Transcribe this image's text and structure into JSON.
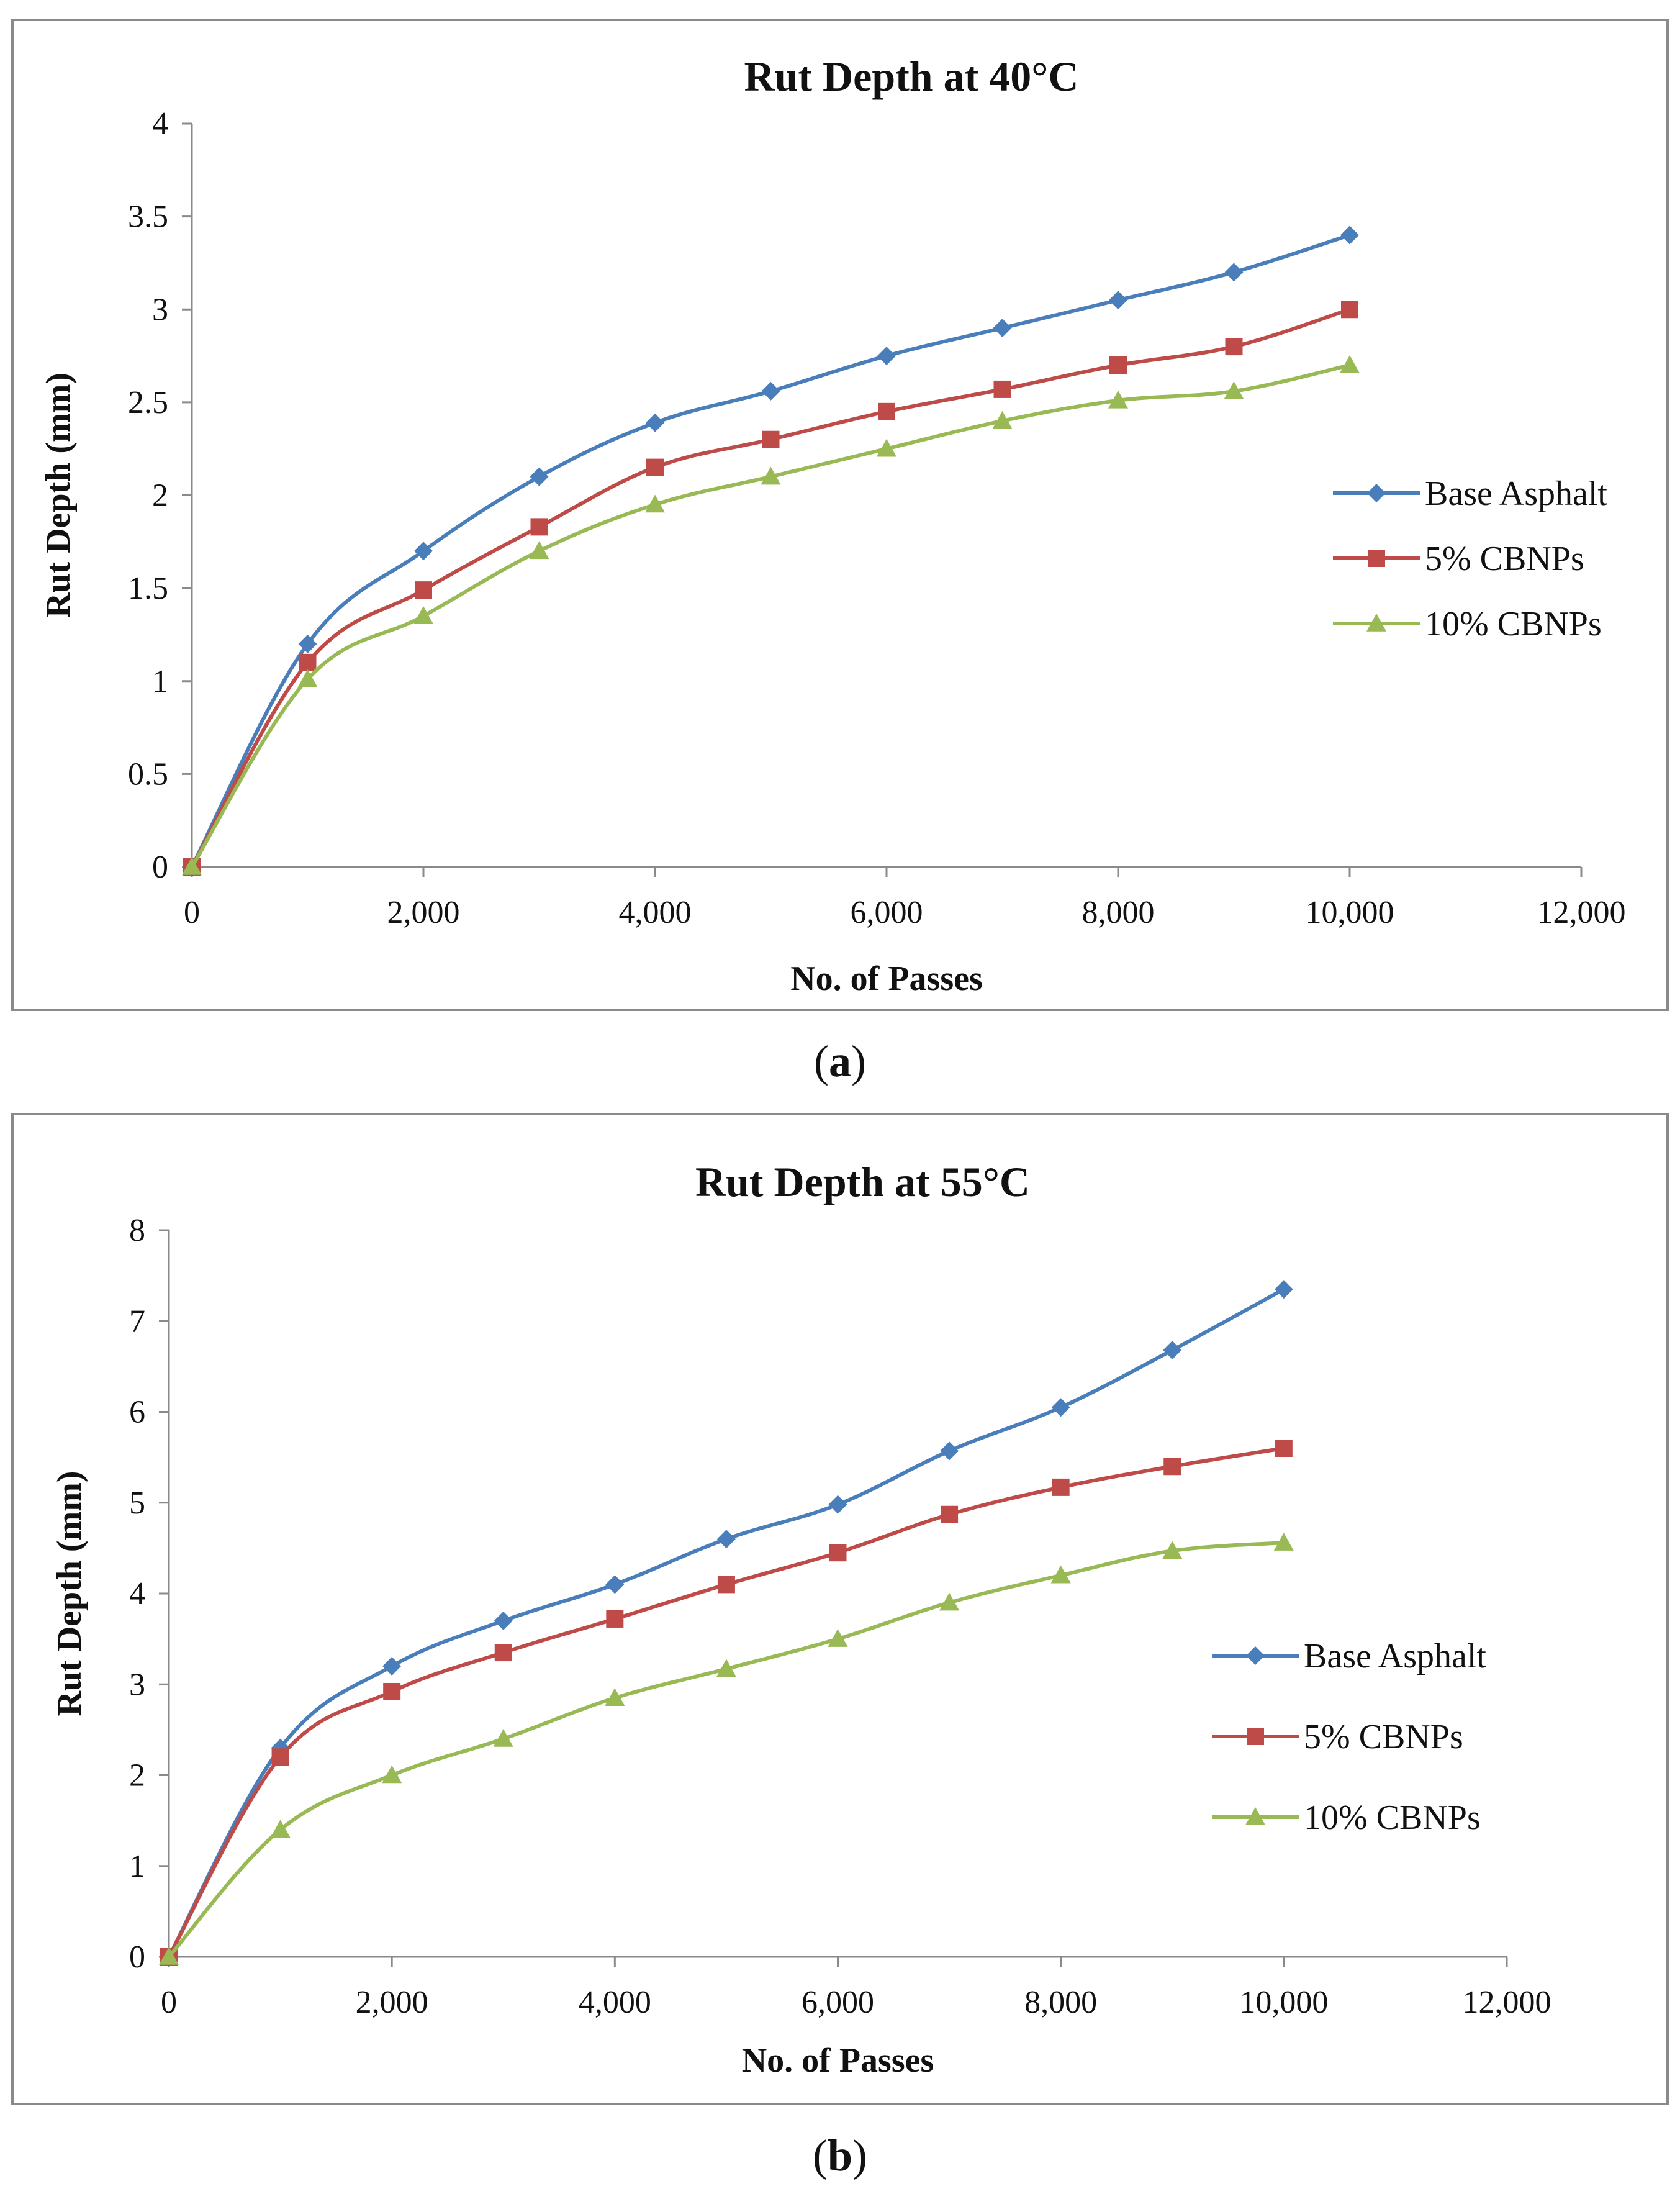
{
  "chart_data": [
    {
      "id": "a",
      "caption": "a",
      "type": "line",
      "title": "Rut Depth at 40°C",
      "xlabel": "No. of Passes",
      "ylabel": "Rut Depth (mm)",
      "xlim": [
        0,
        12000
      ],
      "ylim": [
        0,
        4
      ],
      "xticks": [
        0,
        2000,
        4000,
        6000,
        8000,
        10000,
        12000
      ],
      "xtick_labels": [
        "0",
        "2,000",
        "4,000",
        "6,000",
        "8,000",
        "10,000",
        "12,000"
      ],
      "yticks": [
        0,
        0.5,
        1,
        1.5,
        2,
        2.5,
        3,
        3.5,
        4
      ],
      "ytick_labels": [
        "0",
        "0.5",
        "1",
        "1.5",
        "2",
        "2.5",
        "3",
        "3.5",
        "4"
      ],
      "grid": false,
      "legend_position": "right",
      "x": [
        0,
        1000,
        2000,
        3000,
        4000,
        5000,
        6000,
        7000,
        8000,
        9000,
        10000
      ],
      "series": [
        {
          "name": "Base Asphalt",
          "color": "#4a7ebb",
          "marker": "diamond",
          "values": [
            0,
            1.2,
            1.7,
            2.1,
            2.39,
            2.56,
            2.75,
            2.9,
            3.05,
            3.2,
            3.4
          ]
        },
        {
          "name": "5% CBNPs",
          "color": "#be4b48",
          "marker": "square",
          "values": [
            0,
            1.1,
            1.49,
            1.83,
            2.15,
            2.3,
            2.45,
            2.57,
            2.7,
            2.8,
            3.0
          ]
        },
        {
          "name": "10% CBNPs",
          "color": "#98b954",
          "marker": "triangle",
          "values": [
            0,
            1.01,
            1.35,
            1.7,
            1.95,
            2.1,
            2.25,
            2.4,
            2.51,
            2.56,
            2.7
          ]
        }
      ]
    },
    {
      "id": "b",
      "caption": "b",
      "type": "line",
      "title": "Rut Depth at 55°C",
      "xlabel": "No. of Passes",
      "ylabel": "Rut Depth (mm)",
      "xlim": [
        0,
        12000
      ],
      "ylim": [
        0,
        8
      ],
      "xticks": [
        0,
        2000,
        4000,
        6000,
        8000,
        10000,
        12000
      ],
      "xtick_labels": [
        "0",
        "2,000",
        "4,000",
        "6,000",
        "8,000",
        "10,000",
        "12,000"
      ],
      "yticks": [
        0,
        1,
        2,
        3,
        4,
        5,
        6,
        7,
        8
      ],
      "ytick_labels": [
        "0",
        "1",
        "2",
        "3",
        "4",
        "5",
        "6",
        "7",
        "8"
      ],
      "grid": false,
      "legend_position": "right",
      "x": [
        0,
        1000,
        2000,
        3000,
        4000,
        5000,
        6000,
        7000,
        8000,
        9000,
        10000
      ],
      "series": [
        {
          "name": "Base Asphalt",
          "color": "#4a7ebb",
          "marker": "diamond",
          "values": [
            0,
            2.3,
            3.2,
            3.7,
            4.1,
            4.6,
            4.98,
            5.57,
            6.05,
            6.68,
            7.35
          ]
        },
        {
          "name": "5% CBNPs",
          "color": "#be4b48",
          "marker": "square",
          "values": [
            0,
            2.2,
            2.92,
            3.35,
            3.72,
            4.1,
            4.45,
            4.87,
            5.17,
            5.4,
            5.6
          ]
        },
        {
          "name": "10% CBNPs",
          "color": "#98b954",
          "marker": "triangle",
          "values": [
            0,
            1.4,
            2.0,
            2.4,
            2.85,
            3.17,
            3.5,
            3.9,
            4.2,
            4.47,
            4.56
          ]
        }
      ]
    }
  ]
}
